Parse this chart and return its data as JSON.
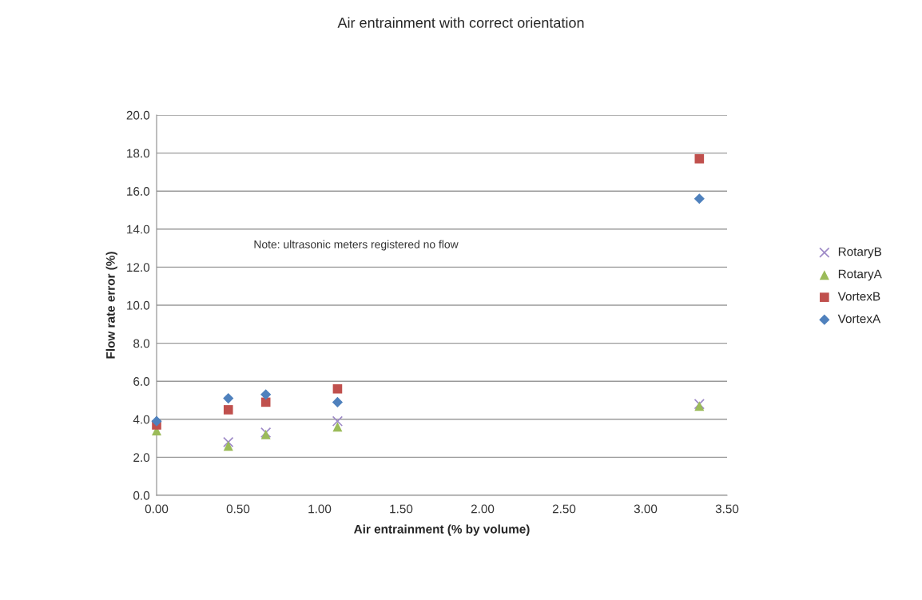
{
  "chart_data": {
    "type": "scatter",
    "title": "Air entrainment with correct orientation",
    "xlabel": "Air entrainment (% by volume)",
    "ylabel": "Flow rate error (%)",
    "x": [
      0,
      0.44,
      0.67,
      1.11,
      3.33
    ],
    "series": [
      {
        "name": "RotaryB",
        "color": "#9e8ac7",
        "marker": "cross",
        "values": [
          null,
          2.8,
          3.3,
          3.9,
          4.8
        ]
      },
      {
        "name": "RotaryA",
        "color": "#9bbb59",
        "marker": "triangle",
        "values": [
          3.4,
          2.6,
          3.2,
          3.6,
          4.7
        ]
      },
      {
        "name": "VortexB",
        "color": "#c0504d",
        "marker": "square",
        "values": [
          3.7,
          4.5,
          4.9,
          5.6,
          17.7
        ]
      },
      {
        "name": "VortexA",
        "color": "#4f81bd",
        "marker": "diamond",
        "values": [
          3.9,
          5.1,
          5.3,
          4.9,
          15.6
        ]
      }
    ],
    "xlim": [
      0,
      3.5
    ],
    "ylim": [
      0,
      20
    ],
    "xticks": [
      {
        "value": 0,
        "label": "0.00"
      },
      {
        "value": 0.5,
        "label": "0.50"
      },
      {
        "value": 1,
        "label": "1.00"
      },
      {
        "value": 1.5,
        "label": "1.50"
      },
      {
        "value": 2,
        "label": "2.00"
      },
      {
        "value": 2.5,
        "label": "2.50"
      },
      {
        "value": 3,
        "label": "3.00"
      },
      {
        "value": 3.5,
        "label": "3.50"
      }
    ],
    "yticks": [
      {
        "value": 0,
        "label": "0.0"
      },
      {
        "value": 2,
        "label": "2.0"
      },
      {
        "value": 4,
        "label": "4.0"
      },
      {
        "value": 6,
        "label": "6.0"
      },
      {
        "value": 8,
        "label": "8.0"
      },
      {
        "value": 10,
        "label": "10.0"
      },
      {
        "value": 12,
        "label": "12.0"
      },
      {
        "value": 14,
        "label": "14.0"
      },
      {
        "value": 16,
        "label": "16.0"
      },
      {
        "value": 18,
        "label": "18.0"
      },
      {
        "value": 20,
        "label": "20.0"
      }
    ],
    "grid": "y",
    "legend": "right",
    "annotations": [
      "Note: ultrasonic meters registered no flow"
    ]
  }
}
